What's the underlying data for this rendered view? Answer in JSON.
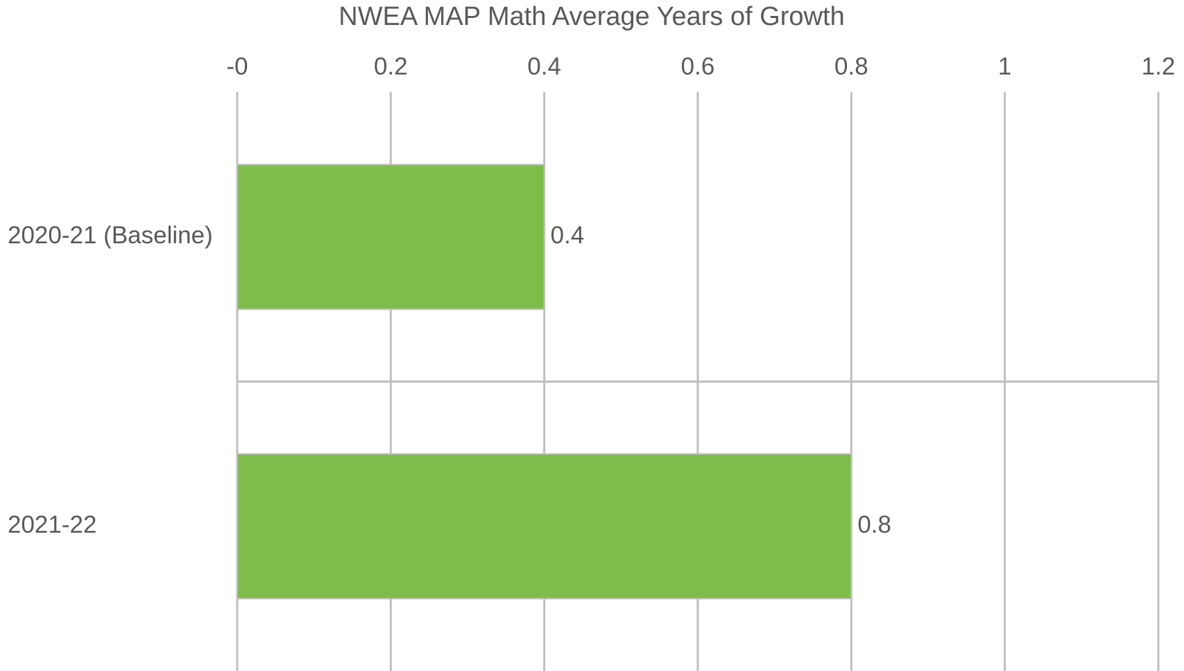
{
  "chart_data": {
    "type": "bar",
    "orientation": "horizontal",
    "title": "NWEA MAP Math Average Years of Growth",
    "categories": [
      "2020-21 (Baseline)",
      "2021-22"
    ],
    "values": [
      0.4,
      0.8
    ],
    "color": "#7fbd4a",
    "xlim": [
      0,
      1.2
    ],
    "xticks": [
      {
        "value": 0,
        "label": "-0"
      },
      0.2,
      0.4,
      0.6,
      0.8,
      1,
      1.2
    ],
    "grid": true
  }
}
